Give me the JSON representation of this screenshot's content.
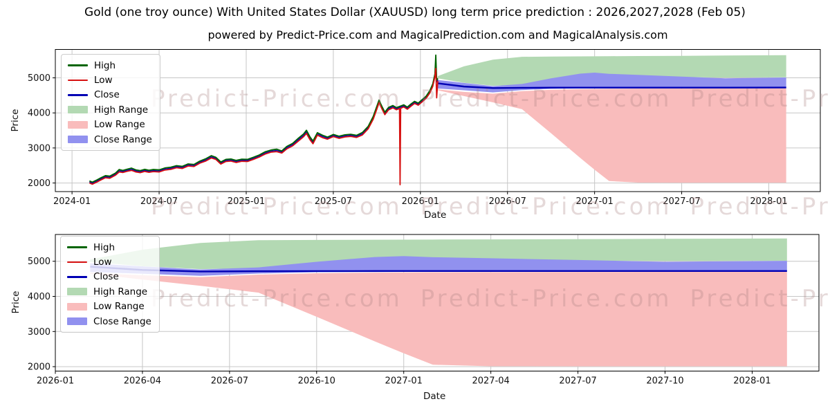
{
  "page": {
    "title": "Gold (one troy ounce) With United States Dollar (XAUUSD) long term price prediction : 2026,2027,2028 (Feb 05)",
    "subtitle": "powered by Predict-Price.com and MagicalPrediction.com and MagicalAnalysis.com",
    "watermark_text": "Predict-Price.com"
  },
  "chart_data": [
    {
      "type": "line",
      "name": "history-and-forecast-chart",
      "xlabel": "Date",
      "ylabel": "Price",
      "x_epoch": "2024-01",
      "x_ticks": {
        "months": [
          0,
          6,
          12,
          18,
          24,
          30,
          36,
          42,
          48
        ],
        "labels": [
          "2024-01",
          "2024-07",
          "2025-01",
          "2025-07",
          "2026-01",
          "2026-07",
          "2027-01",
          "2027-07",
          "2028-01"
        ]
      },
      "y_ticks": {
        "values": [
          2000,
          3000,
          4000,
          5000
        ],
        "labels": [
          "2000",
          "3000",
          "4000",
          "5000"
        ]
      },
      "xlim": [
        -1.15,
        51.55
      ],
      "ylim": [
        1755,
        5810
      ],
      "grid": true,
      "legend_position": "upper-left",
      "forecast_offset_months": 24,
      "show_history": true,
      "legend": [
        {
          "label": "High",
          "type": "line",
          "color": "#006400"
        },
        {
          "label": "Low",
          "type": "line",
          "color": "#d60f0f"
        },
        {
          "label": "Close",
          "type": "line",
          "color": "#0000b4"
        },
        {
          "label": "High Range",
          "type": "patch",
          "color": "#b3d9b3"
        },
        {
          "label": "Low Range",
          "type": "patch",
          "color": "#f9bcbc"
        },
        {
          "label": "Close Range",
          "type": "patch",
          "color": "#9191ef"
        }
      ]
    },
    {
      "type": "line",
      "name": "forecast-detail-chart",
      "xlabel": "Date",
      "ylabel": "Price",
      "x_epoch": "2026-01",
      "x_ticks": {
        "months": [
          0,
          3,
          6,
          9,
          12,
          15,
          18,
          21,
          24
        ],
        "labels": [
          "2026-01",
          "2026-04",
          "2026-07",
          "2026-10",
          "2027-01",
          "2027-04",
          "2027-07",
          "2027-10",
          "2028-01"
        ]
      },
      "y_ticks": {
        "values": [
          2000,
          3000,
          4000,
          5000
        ],
        "labels": [
          "2000",
          "3000",
          "4000",
          "5000"
        ]
      },
      "xlim": [
        0,
        26.3
      ],
      "ylim": [
        1874,
        5762
      ],
      "grid": true,
      "legend_position": "upper-left",
      "forecast_offset_months": 0,
      "show_history": false,
      "legend": [
        {
          "label": "High",
          "type": "line",
          "color": "#006400"
        },
        {
          "label": "Low",
          "type": "line",
          "color": "#d60f0f"
        },
        {
          "label": "Close",
          "type": "line",
          "color": "#0000b4"
        },
        {
          "label": "High Range",
          "type": "patch",
          "color": "#b3d9b3"
        },
        {
          "label": "Low Range",
          "type": "patch",
          "color": "#f9bcbc"
        },
        {
          "label": "Close Range",
          "type": "patch",
          "color": "#9191ef"
        }
      ]
    }
  ],
  "history": {
    "t_unit": "months since 2024-01",
    "close": [
      [
        1.2,
        2030
      ],
      [
        1.4,
        1995
      ],
      [
        1.7,
        2055
      ],
      [
        2.0,
        2120
      ],
      [
        2.3,
        2180
      ],
      [
        2.6,
        2165
      ],
      [
        3.0,
        2255
      ],
      [
        3.25,
        2350
      ],
      [
        3.5,
        2330
      ],
      [
        3.8,
        2365
      ],
      [
        4.1,
        2390
      ],
      [
        4.4,
        2345
      ],
      [
        4.7,
        2325
      ],
      [
        5.0,
        2360
      ],
      [
        5.3,
        2335
      ],
      [
        5.6,
        2355
      ],
      [
        6.0,
        2345
      ],
      [
        6.4,
        2400
      ],
      [
        6.8,
        2420
      ],
      [
        7.2,
        2465
      ],
      [
        7.6,
        2445
      ],
      [
        8.0,
        2515
      ],
      [
        8.4,
        2500
      ],
      [
        8.8,
        2595
      ],
      [
        9.2,
        2655
      ],
      [
        9.6,
        2745
      ],
      [
        9.9,
        2705
      ],
      [
        10.25,
        2570
      ],
      [
        10.6,
        2645
      ],
      [
        10.95,
        2655
      ],
      [
        11.3,
        2615
      ],
      [
        11.7,
        2650
      ],
      [
        12.1,
        2645
      ],
      [
        12.5,
        2705
      ],
      [
        12.9,
        2770
      ],
      [
        13.3,
        2855
      ],
      [
        13.7,
        2910
      ],
      [
        14.1,
        2930
      ],
      [
        14.45,
        2885
      ],
      [
        14.8,
        3010
      ],
      [
        15.2,
        3095
      ],
      [
        15.6,
        3240
      ],
      [
        15.95,
        3360
      ],
      [
        16.15,
        3460
      ],
      [
        16.4,
        3270
      ],
      [
        16.6,
        3165
      ],
      [
        16.9,
        3400
      ],
      [
        17.25,
        3330
      ],
      [
        17.6,
        3280
      ],
      [
        18.0,
        3355
      ],
      [
        18.4,
        3305
      ],
      [
        18.8,
        3345
      ],
      [
        19.2,
        3360
      ],
      [
        19.6,
        3330
      ],
      [
        20.0,
        3405
      ],
      [
        20.4,
        3580
      ],
      [
        20.75,
        3860
      ],
      [
        21.0,
        4150
      ],
      [
        21.15,
        4330
      ],
      [
        21.35,
        4150
      ],
      [
        21.55,
        3985
      ],
      [
        21.8,
        4120
      ],
      [
        22.1,
        4180
      ],
      [
        22.35,
        4120
      ],
      [
        22.6,
        4160
      ],
      [
        22.85,
        4200
      ],
      [
        23.1,
        4135
      ],
      [
        23.35,
        4225
      ],
      [
        23.6,
        4300
      ],
      [
        23.85,
        4250
      ],
      [
        24.1,
        4340
      ],
      [
        24.4,
        4450
      ],
      [
        24.65,
        4600
      ],
      [
        24.85,
        4790
      ],
      [
        25.0,
        5070
      ],
      [
        25.06,
        5320
      ],
      [
        25.12,
        4880
      ],
      [
        25.2,
        4950
      ]
    ],
    "high": [
      [
        1.2,
        2060
      ],
      [
        1.4,
        2025
      ],
      [
        1.7,
        2085
      ],
      [
        2.0,
        2150
      ],
      [
        2.3,
        2210
      ],
      [
        2.6,
        2195
      ],
      [
        3.0,
        2285
      ],
      [
        3.25,
        2385
      ],
      [
        3.5,
        2360
      ],
      [
        3.8,
        2395
      ],
      [
        4.1,
        2425
      ],
      [
        4.4,
        2375
      ],
      [
        4.7,
        2355
      ],
      [
        5.0,
        2390
      ],
      [
        5.3,
        2365
      ],
      [
        5.6,
        2385
      ],
      [
        6.0,
        2375
      ],
      [
        6.4,
        2430
      ],
      [
        6.8,
        2450
      ],
      [
        7.2,
        2495
      ],
      [
        7.6,
        2475
      ],
      [
        8.0,
        2545
      ],
      [
        8.4,
        2530
      ],
      [
        8.8,
        2625
      ],
      [
        9.2,
        2690
      ],
      [
        9.6,
        2780
      ],
      [
        9.9,
        2735
      ],
      [
        10.25,
        2600
      ],
      [
        10.6,
        2675
      ],
      [
        10.95,
        2685
      ],
      [
        11.3,
        2645
      ],
      [
        11.7,
        2680
      ],
      [
        12.1,
        2675
      ],
      [
        12.5,
        2735
      ],
      [
        12.9,
        2800
      ],
      [
        13.3,
        2890
      ],
      [
        13.7,
        2940
      ],
      [
        14.1,
        2965
      ],
      [
        14.45,
        2915
      ],
      [
        14.8,
        3045
      ],
      [
        15.2,
        3130
      ],
      [
        15.6,
        3280
      ],
      [
        15.95,
        3400
      ],
      [
        16.15,
        3505
      ],
      [
        16.4,
        3310
      ],
      [
        16.6,
        3200
      ],
      [
        16.9,
        3435
      ],
      [
        17.25,
        3365
      ],
      [
        17.6,
        3310
      ],
      [
        18.0,
        3385
      ],
      [
        18.4,
        3335
      ],
      [
        18.8,
        3375
      ],
      [
        19.2,
        3390
      ],
      [
        19.6,
        3360
      ],
      [
        20.0,
        3440
      ],
      [
        20.4,
        3615
      ],
      [
        20.75,
        3900
      ],
      [
        21.0,
        4190
      ],
      [
        21.15,
        4365
      ],
      [
        21.35,
        4185
      ],
      [
        21.55,
        4020
      ],
      [
        21.8,
        4155
      ],
      [
        22.1,
        4210
      ],
      [
        22.35,
        4150
      ],
      [
        22.6,
        4190
      ],
      [
        22.85,
        4230
      ],
      [
        23.1,
        4165
      ],
      [
        23.35,
        4255
      ],
      [
        23.6,
        4330
      ],
      [
        23.85,
        4280
      ],
      [
        24.1,
        4370
      ],
      [
        24.4,
        4480
      ],
      [
        24.65,
        4635
      ],
      [
        24.85,
        4825
      ],
      [
        25.0,
        5110
      ],
      [
        25.06,
        5650
      ],
      [
        25.12,
        4930
      ],
      [
        25.2,
        4985
      ]
    ],
    "low": [
      [
        1.2,
        2000
      ],
      [
        1.4,
        1965
      ],
      [
        1.7,
        2025
      ],
      [
        2.0,
        2090
      ],
      [
        2.3,
        2150
      ],
      [
        2.6,
        2135
      ],
      [
        3.0,
        2225
      ],
      [
        3.25,
        2315
      ],
      [
        3.5,
        2300
      ],
      [
        3.8,
        2335
      ],
      [
        4.1,
        2360
      ],
      [
        4.4,
        2315
      ],
      [
        4.7,
        2295
      ],
      [
        5.0,
        2330
      ],
      [
        5.3,
        2305
      ],
      [
        5.6,
        2325
      ],
      [
        6.0,
        2315
      ],
      [
        6.4,
        2370
      ],
      [
        6.8,
        2390
      ],
      [
        7.2,
        2435
      ],
      [
        7.6,
        2415
      ],
      [
        8.0,
        2485
      ],
      [
        8.4,
        2470
      ],
      [
        8.8,
        2565
      ],
      [
        9.2,
        2625
      ],
      [
        9.6,
        2715
      ],
      [
        9.9,
        2675
      ],
      [
        10.25,
        2540
      ],
      [
        10.6,
        2615
      ],
      [
        10.95,
        2625
      ],
      [
        11.3,
        2585
      ],
      [
        11.7,
        2620
      ],
      [
        12.1,
        2615
      ],
      [
        12.5,
        2675
      ],
      [
        12.9,
        2740
      ],
      [
        13.3,
        2825
      ],
      [
        13.7,
        2880
      ],
      [
        14.1,
        2895
      ],
      [
        14.45,
        2855
      ],
      [
        14.8,
        2975
      ],
      [
        15.2,
        3060
      ],
      [
        15.6,
        3200
      ],
      [
        15.95,
        3320
      ],
      [
        16.15,
        3415
      ],
      [
        16.4,
        3230
      ],
      [
        16.6,
        3120
      ],
      [
        16.9,
        3365
      ],
      [
        17.25,
        3295
      ],
      [
        17.6,
        3250
      ],
      [
        18.0,
        3325
      ],
      [
        18.4,
        3275
      ],
      [
        18.8,
        3315
      ],
      [
        19.2,
        3330
      ],
      [
        19.6,
        3300
      ],
      [
        20.0,
        3370
      ],
      [
        20.4,
        3545
      ],
      [
        20.75,
        3820
      ],
      [
        21.0,
        4110
      ],
      [
        21.15,
        4295
      ],
      [
        21.35,
        4115
      ],
      [
        21.55,
        3950
      ],
      [
        21.8,
        4085
      ],
      [
        22.1,
        4145
      ],
      [
        22.35,
        4090
      ],
      [
        22.56,
        4125
      ],
      [
        22.6,
        1950
      ],
      [
        22.64,
        4130
      ],
      [
        22.85,
        4170
      ],
      [
        23.1,
        4105
      ],
      [
        23.35,
        4190
      ],
      [
        23.6,
        4270
      ],
      [
        23.85,
        4220
      ],
      [
        24.1,
        4310
      ],
      [
        24.4,
        4420
      ],
      [
        24.65,
        4570
      ],
      [
        24.85,
        4755
      ],
      [
        25.0,
        5030
      ],
      [
        25.06,
        5270
      ],
      [
        25.12,
        4430
      ],
      [
        25.2,
        4915
      ]
    ]
  },
  "forecast": {
    "t_unit": "months since 2026-01",
    "t": [
      1.2,
      3,
      5,
      7,
      9,
      11,
      12,
      13,
      15,
      18,
      21,
      25.2
    ],
    "high_top": [
      5050,
      5330,
      5520,
      5600,
      5608,
      5612,
      5615,
      5618,
      5622,
      5628,
      5638,
      5648
    ],
    "high_bot": [
      4985,
      4860,
      4775,
      4805,
      4945,
      5080,
      5110,
      5090,
      5060,
      5020,
      5008,
      5015
    ],
    "close_top": [
      4940,
      4855,
      4765,
      4825,
      4985,
      5120,
      5148,
      5115,
      5085,
      5035,
      4985,
      5012
    ],
    "close_bot": [
      4695,
      4645,
      4585,
      4650,
      4690,
      4702,
      4705,
      4706,
      4708,
      4710,
      4712,
      4715
    ],
    "close_line": [
      4845,
      4752,
      4708,
      4716,
      4720,
      4721,
      4722,
      4722,
      4722,
      4722,
      4722,
      4723
    ],
    "low_top": [
      4670,
      4600,
      4550,
      4620,
      4660,
      4678,
      4684,
      4688,
      4692,
      4696,
      4698,
      4700
    ],
    "low_bot": [
      4645,
      4480,
      4300,
      4105,
      3420,
      2720,
      2380,
      2055,
      2012,
      2010,
      2010,
      2010
    ]
  }
}
